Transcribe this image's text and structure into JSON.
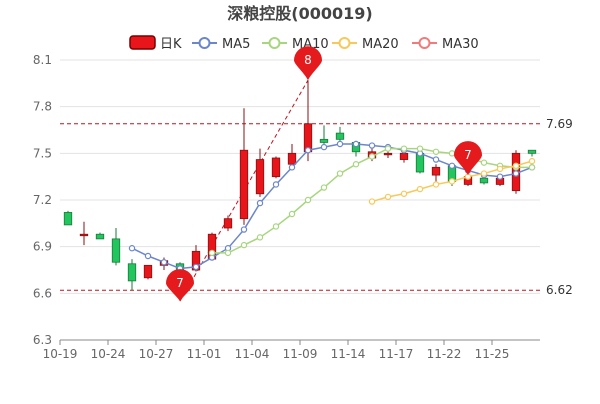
{
  "chart_data": {
    "type": "candlestick",
    "title": "深粮控股(000019)",
    "legend": {
      "placement": "top",
      "items": [
        {
          "key": "kline",
          "label": "日K",
          "color": "#e8151b"
        },
        {
          "key": "ma5",
          "label": "MA5",
          "color": "#6b86cc"
        },
        {
          "key": "ma10",
          "label": "MA10",
          "color": "#a7d67f"
        },
        {
          "key": "ma20",
          "label": "MA20",
          "color": "#f9c858"
        },
        {
          "key": "ma30",
          "label": "MA30",
          "color": "#f17b7b"
        }
      ]
    },
    "colors": {
      "up": "#e8151b",
      "down": "#22c55e"
    },
    "ylim": [
      6.3,
      8.1
    ],
    "yticks": [
      "6.3",
      "6.6",
      "6.9",
      "7.2",
      "7.5",
      "7.8",
      "8.1"
    ],
    "xticks": [
      {
        "label": "10-19",
        "index": 0
      },
      {
        "label": "10-24",
        "index": 3
      },
      {
        "label": "10-27",
        "index": 6
      },
      {
        "label": "11-01",
        "index": 9
      },
      {
        "label": "11-04",
        "index": 12
      },
      {
        "label": "11-09",
        "index": 15
      },
      {
        "label": "11-14",
        "index": 18
      },
      {
        "label": "11-17",
        "index": 21
      },
      {
        "label": "11-22",
        "index": 24
      },
      {
        "label": "11-25",
        "index": 27
      }
    ],
    "candles": [
      {
        "o": 7.12,
        "h": 7.13,
        "l": 7.04,
        "c": 7.04
      },
      {
        "o": 6.98,
        "h": 7.06,
        "l": 6.91,
        "c": 6.98
      },
      {
        "o": 6.98,
        "h": 6.99,
        "l": 6.95,
        "c": 6.95
      },
      {
        "o": 6.95,
        "h": 7.02,
        "l": 6.78,
        "c": 6.8
      },
      {
        "o": 6.79,
        "h": 6.82,
        "l": 6.62,
        "c": 6.68
      },
      {
        "o": 6.7,
        "h": 6.78,
        "l": 6.69,
        "c": 6.78
      },
      {
        "o": 6.78,
        "h": 6.83,
        "l": 6.75,
        "c": 6.81
      },
      {
        "o": 6.79,
        "h": 6.8,
        "l": 6.55,
        "c": 6.74
      },
      {
        "o": 6.75,
        "h": 6.91,
        "l": 6.74,
        "c": 6.87
      },
      {
        "o": 6.82,
        "h": 6.99,
        "l": 6.82,
        "c": 6.98
      },
      {
        "o": 7.02,
        "h": 7.1,
        "l": 7.0,
        "c": 7.08
      },
      {
        "o": 7.08,
        "h": 7.79,
        "l": 7.04,
        "c": 7.52
      },
      {
        "o": 7.24,
        "h": 7.53,
        "l": 7.22,
        "c": 7.46
      },
      {
        "o": 7.35,
        "h": 7.48,
        "l": 7.34,
        "c": 7.47
      },
      {
        "o": 7.43,
        "h": 7.56,
        "l": 7.4,
        "c": 7.5
      },
      {
        "o": 7.51,
        "h": 7.97,
        "l": 7.45,
        "c": 7.69
      },
      {
        "o": 7.59,
        "h": 7.68,
        "l": 7.56,
        "c": 7.57
      },
      {
        "o": 7.63,
        "h": 7.67,
        "l": 7.56,
        "c": 7.59
      },
      {
        "o": 7.57,
        "h": 7.58,
        "l": 7.48,
        "c": 7.51
      },
      {
        "o": 7.47,
        "h": 7.53,
        "l": 7.45,
        "c": 7.51
      },
      {
        "o": 7.5,
        "h": 7.52,
        "l": 7.47,
        "c": 7.5
      },
      {
        "o": 7.46,
        "h": 7.52,
        "l": 7.44,
        "c": 7.5
      },
      {
        "o": 7.5,
        "h": 7.51,
        "l": 7.37,
        "c": 7.38
      },
      {
        "o": 7.36,
        "h": 7.43,
        "l": 7.29,
        "c": 7.41
      },
      {
        "o": 7.42,
        "h": 7.43,
        "l": 7.29,
        "c": 7.32
      },
      {
        "o": 7.3,
        "h": 7.36,
        "l": 7.29,
        "c": 7.35
      },
      {
        "o": 7.34,
        "h": 7.34,
        "l": 7.3,
        "c": 7.31
      },
      {
        "o": 7.3,
        "h": 7.36,
        "l": 7.29,
        "c": 7.34
      },
      {
        "o": 7.26,
        "h": 7.52,
        "l": 7.24,
        "c": 7.5
      },
      {
        "o": 7.52,
        "h": 7.52,
        "l": 7.48,
        "c": 7.5
      }
    ],
    "ma": [
      {
        "key": "ma5",
        "values": [
          null,
          null,
          null,
          null,
          6.89,
          6.84,
          6.8,
          6.76,
          6.77,
          6.83,
          6.89,
          7.01,
          7.18,
          7.3,
          7.41,
          7.52,
          7.54,
          7.56,
          7.56,
          7.55,
          7.54,
          7.52,
          7.5,
          7.46,
          7.42,
          7.39,
          7.36,
          7.35,
          7.37,
          7.41
        ]
      },
      {
        "key": "ma10",
        "values": [
          null,
          null,
          null,
          null,
          null,
          null,
          null,
          null,
          null,
          6.86,
          6.86,
          6.91,
          6.96,
          7.03,
          7.11,
          7.2,
          7.28,
          7.37,
          7.43,
          7.48,
          7.53,
          7.53,
          7.53,
          7.51,
          7.5,
          7.47,
          7.44,
          7.42,
          7.41,
          7.41
        ]
      },
      {
        "key": "ma20",
        "values": [
          null,
          null,
          null,
          null,
          null,
          null,
          null,
          null,
          null,
          null,
          null,
          null,
          null,
          null,
          null,
          null,
          null,
          null,
          null,
          7.19,
          7.22,
          7.24,
          7.27,
          7.3,
          7.32,
          7.35,
          7.37,
          7.4,
          7.42,
          7.45
        ]
      },
      {
        "key": "ma30",
        "values": [
          null,
          null,
          null,
          null,
          null,
          null,
          null,
          null,
          null,
          null,
          null,
          null,
          null,
          null,
          null,
          null,
          null,
          null,
          null,
          null,
          null,
          null,
          null,
          null,
          null,
          null,
          null,
          null,
          null,
          null
        ]
      }
    ],
    "reference_lines": [
      {
        "value": 7.69,
        "label": "7.69",
        "color": "#c1121f"
      },
      {
        "value": 6.62,
        "label": "6.62",
        "color": "#c1121f"
      }
    ],
    "markers": [
      {
        "index": 15,
        "value": 7.97,
        "label": "8",
        "direction": "up"
      },
      {
        "index": 7,
        "value": 6.55,
        "label": "7",
        "direction": "down"
      },
      {
        "index": 25,
        "value": 7.36,
        "label": "7",
        "direction": "up"
      }
    ],
    "trend_line": {
      "from": {
        "index": 7,
        "value": 6.55
      },
      "to": {
        "index": 15,
        "value": 7.97
      }
    },
    "grid": true
  }
}
